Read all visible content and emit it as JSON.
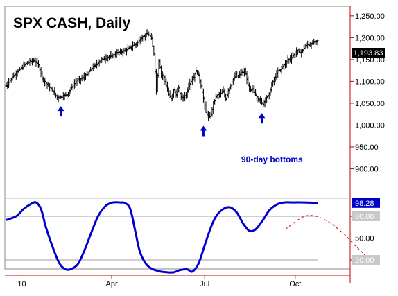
{
  "chart_data": [
    {
      "type": "ohlc",
      "title": "SPX CASH, Daily",
      "annotation": "90-day bottoms",
      "last_value": 1193.83,
      "last_value_label": "1,193.83",
      "ylim": [
        842,
        1272
      ],
      "y_ticks": [
        {
          "value": 1250,
          "label": "1,250.00"
        },
        {
          "value": 1200,
          "label": "1,200.00"
        },
        {
          "value": 1150,
          "label": "1,150.00"
        },
        {
          "value": 1100,
          "label": "1,100.00"
        },
        {
          "value": 1050,
          "label": "1,050.00"
        },
        {
          "value": 1000,
          "label": "1,000.00"
        },
        {
          "value": 950,
          "label": "950.00"
        },
        {
          "value": 900,
          "label": "900.00"
        }
      ],
      "x_ticks": [
        "'10",
        "Apr",
        "Jul",
        "Oct"
      ],
      "bottoms": [
        1056,
        1011,
        1040
      ],
      "close_path": [
        [
          0,
          1090
        ],
        [
          6,
          1114
        ],
        [
          12,
          1130
        ],
        [
          17,
          1143
        ],
        [
          22,
          1148
        ],
        [
          26,
          1138
        ],
        [
          29,
          1108
        ],
        [
          33,
          1092
        ],
        [
          37,
          1080
        ],
        [
          41,
          1063
        ],
        [
          45,
          1066
        ],
        [
          49,
          1070
        ],
        [
          53,
          1088
        ],
        [
          57,
          1102
        ],
        [
          61,
          1107
        ],
        [
          65,
          1115
        ],
        [
          69,
          1130
        ],
        [
          73,
          1140
        ],
        [
          77,
          1150
        ],
        [
          81,
          1155
        ],
        [
          85,
          1158
        ],
        [
          89,
          1165
        ],
        [
          93,
          1168
        ],
        [
          97,
          1172
        ],
        [
          101,
          1180
        ],
        [
          105,
          1186
        ],
        [
          109,
          1200
        ],
        [
          113,
          1209
        ],
        [
          115,
          1206
        ],
        [
          117,
          1198
        ],
        [
          119,
          1163
        ],
        [
          121,
          1080
        ],
        [
          123,
          1148
        ],
        [
          125,
          1116
        ],
        [
          127,
          1110
        ],
        [
          129,
          1090
        ],
        [
          131,
          1070
        ],
        [
          133,
          1060
        ],
        [
          135,
          1080
        ],
        [
          137,
          1070
        ],
        [
          139,
          1083
        ],
        [
          141,
          1063
        ],
        [
          143,
          1064
        ],
        [
          145,
          1070
        ],
        [
          147,
          1090
        ],
        [
          149,
          1100
        ],
        [
          151,
          1110
        ],
        [
          153,
          1125
        ],
        [
          155,
          1115
        ],
        [
          157,
          1090
        ],
        [
          159,
          1060
        ],
        [
          161,
          1030
        ],
        [
          163,
          1018
        ],
        [
          165,
          1023
        ],
        [
          167,
          1050
        ],
        [
          169,
          1064
        ],
        [
          171,
          1070
        ],
        [
          173,
          1072
        ],
        [
          175,
          1078
        ],
        [
          177,
          1060
        ],
        [
          179,
          1080
        ],
        [
          181,
          1092
        ],
        [
          183,
          1105
        ],
        [
          185,
          1115
        ],
        [
          187,
          1110
        ],
        [
          189,
          1120
        ],
        [
          191,
          1121
        ],
        [
          193,
          1118
        ],
        [
          195,
          1091
        ],
        [
          197,
          1079
        ],
        [
          199,
          1083
        ],
        [
          201,
          1070
        ],
        [
          203,
          1060
        ],
        [
          205,
          1055
        ],
        [
          207,
          1048
        ],
        [
          209,
          1060
        ],
        [
          211,
          1066
        ],
        [
          213,
          1080
        ],
        [
          215,
          1100
        ],
        [
          217,
          1110
        ],
        [
          219,
          1124
        ],
        [
          221,
          1126
        ],
        [
          223,
          1135
        ],
        [
          225,
          1140
        ],
        [
          227,
          1150
        ],
        [
          229,
          1152
        ],
        [
          231,
          1158
        ],
        [
          233,
          1165
        ],
        [
          235,
          1170
        ],
        [
          237,
          1166
        ],
        [
          239,
          1172
        ],
        [
          241,
          1180
        ],
        [
          243,
          1185
        ],
        [
          245,
          1182
        ],
        [
          247,
          1188
        ],
        [
          249,
          1190
        ],
        [
          251,
          1193.83
        ]
      ]
    },
    {
      "type": "line",
      "ylim": [
        0,
        100
      ],
      "levels": [
        {
          "value": 80,
          "label": "80.00"
        },
        {
          "value": 50,
          "label": "50.00"
        },
        {
          "value": 20,
          "label": "20.00"
        }
      ],
      "last_value": 98.28,
      "last_value_label": "98.28",
      "series": [
        {
          "style": "solid",
          "points": [
            [
              0,
              75
            ],
            [
              8,
              80
            ],
            [
              14,
              90
            ],
            [
              20,
              97
            ],
            [
              24,
              99
            ],
            [
              28,
              90
            ],
            [
              32,
              65
            ],
            [
              38,
              35
            ],
            [
              43,
              15
            ],
            [
              48,
              7
            ],
            [
              53,
              8
            ],
            [
              58,
              15
            ],
            [
              63,
              33
            ],
            [
              68,
              55
            ],
            [
              74,
              80
            ],
            [
              80,
              94
            ],
            [
              86,
              99
            ],
            [
              92,
              99
            ],
            [
              96,
              98
            ],
            [
              100,
              90
            ],
            [
              104,
              60
            ],
            [
              108,
              30
            ],
            [
              114,
              12
            ],
            [
              122,
              5
            ],
            [
              130,
              3
            ],
            [
              135,
              3
            ],
            [
              140,
              6
            ],
            [
              146,
              7
            ],
            [
              150,
              4
            ],
            [
              155,
              15
            ],
            [
              160,
              40
            ],
            [
              165,
              65
            ],
            [
              170,
              82
            ],
            [
              176,
              91
            ],
            [
              181,
              92
            ],
            [
              186,
              85
            ],
            [
              191,
              70
            ],
            [
              196,
              60
            ],
            [
              201,
              62
            ],
            [
              207,
              75
            ],
            [
              212,
              88
            ],
            [
              218,
              96
            ],
            [
              224,
              99
            ],
            [
              232,
              99
            ],
            [
              240,
              99
            ],
            [
              251,
              98.28
            ]
          ]
        },
        {
          "style": "dashed",
          "points": [
            [
              225,
              62
            ],
            [
              231,
              70
            ],
            [
              237,
              77
            ],
            [
              243,
              81
            ],
            [
              250,
              80
            ],
            [
              256,
              76
            ],
            [
              262,
              70
            ],
            [
              268,
              62
            ],
            [
              274,
              53
            ],
            [
              280,
              42
            ],
            [
              286,
              32
            ],
            [
              292,
              22
            ]
          ]
        }
      ]
    }
  ]
}
